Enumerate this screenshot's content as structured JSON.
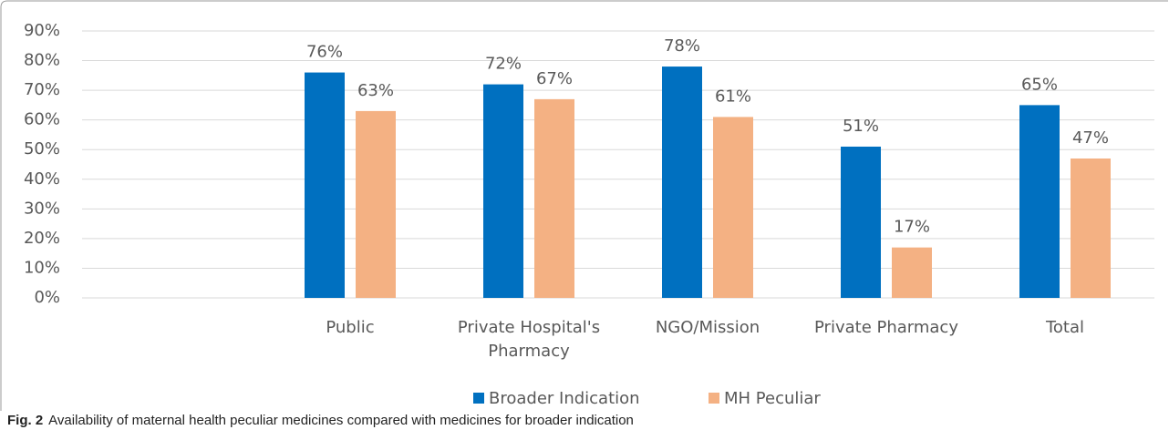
{
  "chart_data": {
    "type": "bar",
    "categories": [
      null,
      "Public",
      "Private Hospital's Pharmacy",
      "NGO/Mission",
      "Private Pharmacy",
      "Total"
    ],
    "series": [
      {
        "name": "Broader Indication",
        "color": "#0070c0",
        "values": [
          null,
          76,
          72,
          78,
          51,
          65
        ],
        "value_labels": [
          null,
          "76%",
          "72%",
          "78%",
          "51%",
          "65%"
        ]
      },
      {
        "name": "MH Peculiar",
        "color": "#f4b183",
        "values": [
          null,
          63,
          67,
          61,
          17,
          47
        ],
        "value_labels": [
          null,
          "63%",
          "67%",
          "61%",
          "17%",
          "47%"
        ]
      }
    ],
    "ylim": [
      0,
      90
    ],
    "yticks": [
      {
        "value": 0,
        "label": "0%"
      },
      {
        "value": 10,
        "label": "10%"
      },
      {
        "value": 20,
        "label": "20%"
      },
      {
        "value": 30,
        "label": "30%"
      },
      {
        "value": 40,
        "label": "40%"
      },
      {
        "value": 50,
        "label": "50%"
      },
      {
        "value": 60,
        "label": "60%"
      },
      {
        "value": 70,
        "label": "70%"
      },
      {
        "value": 80,
        "label": "80%"
      },
      {
        "value": 90,
        "label": "90%"
      }
    ],
    "grid": true,
    "legend": "bottom",
    "caption_label": "Fig. 2",
    "caption": "Availability of maternal health peculiar medicines compared with medicines for broader indication"
  }
}
